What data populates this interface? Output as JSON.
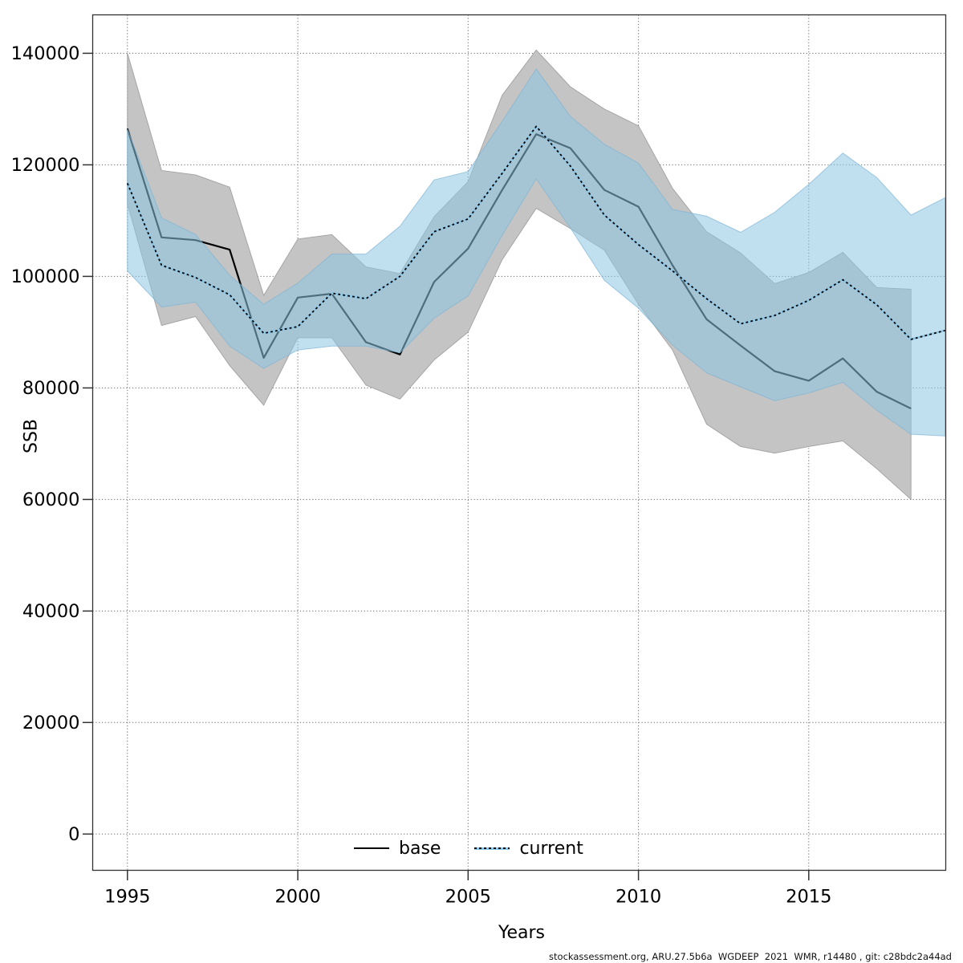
{
  "figure": {
    "background": "#ffffff",
    "y_axis_title": "SSB",
    "x_axis_title": "Years",
    "footer": "stockassessment.org, ARU.27.5b6a  WGDEEP  2021  WMR, r14480 , git: c28bdc2a44ad",
    "legend": {
      "items": [
        {
          "label": "base",
          "style": "solid-black-line"
        },
        {
          "label": "current",
          "style": "dotted-blue-line"
        }
      ]
    },
    "colors": {
      "base_line": "#000000",
      "base_band_fill": "#c4c4c4",
      "base_band_edge": "#a0a0a0",
      "current_line_dash": "#000000",
      "current_line_under": "#8ec6e6",
      "current_band_fill": "rgba(142,198,226,0.55)",
      "current_band_edge": "rgba(125,180,212,0.7)",
      "grid": "#666666",
      "axis": "#333333"
    }
  },
  "chart_data": {
    "type": "line",
    "title": "",
    "xlabel": "Years",
    "ylabel": "SSB",
    "xlim": [
      1993.98,
      2019.02
    ],
    "ylim": [
      -6500,
      146900
    ],
    "grid": true,
    "legend_position": "bottom-center-inside",
    "x_ticks": [
      1995,
      2000,
      2005,
      2010,
      2015
    ],
    "y_ticks": [
      0,
      20000,
      40000,
      60000,
      80000,
      100000,
      120000,
      140000
    ],
    "series": [
      {
        "name": "base",
        "line_style": "solid",
        "years": [
          1995,
          1996,
          1997,
          1998,
          1999,
          2000,
          2001,
          2002,
          2003,
          2004,
          2005,
          2006,
          2007,
          2008,
          2009,
          2010,
          2011,
          2012,
          2013,
          2014,
          2015,
          2016,
          2017,
          2018
        ],
        "values": [
          126500,
          107000,
          106500,
          104800,
          85400,
          96200,
          96900,
          88200,
          86000,
          99000,
          105000,
          115500,
          125500,
          123000,
          115500,
          112500,
          102000,
          92300,
          87600,
          83000,
          81300,
          85300,
          79300,
          76300
        ],
        "band_upper": [
          140000,
          119000,
          118200,
          116000,
          96600,
          106700,
          107500,
          101700,
          100500,
          110700,
          117000,
          132500,
          140600,
          134000,
          130000,
          127000,
          115800,
          108000,
          104200,
          98700,
          100700,
          104300,
          98000,
          97700
        ],
        "band_lower": [
          113000,
          91200,
          92800,
          84000,
          76900,
          89000,
          89000,
          80500,
          78000,
          85000,
          90000,
          103000,
          112200,
          108600,
          104700,
          95000,
          86800,
          73500,
          69500,
          68300,
          69500,
          70500,
          65500,
          60000
        ]
      },
      {
        "name": "current",
        "line_style": "dotted",
        "years": [
          1995,
          1996,
          1997,
          1998,
          1999,
          2000,
          2001,
          2002,
          2003,
          2004,
          2005,
          2006,
          2007,
          2008,
          2009,
          2010,
          2011,
          2012,
          2013,
          2014,
          2015,
          2016,
          2017,
          2018,
          2019
        ],
        "values": [
          116700,
          102000,
          99800,
          96700,
          89800,
          91000,
          97000,
          96000,
          100000,
          108000,
          110300,
          118500,
          126900,
          119800,
          111000,
          105700,
          101000,
          96000,
          91500,
          93000,
          95700,
          99400,
          94900,
          88700,
          90300
        ],
        "band_upper": [
          126400,
          110500,
          107500,
          100200,
          95000,
          98800,
          104000,
          104000,
          109000,
          117300,
          118800,
          127800,
          137200,
          128700,
          123700,
          120300,
          112000,
          110800,
          107900,
          111500,
          116500,
          122100,
          117700,
          111000,
          114100
        ],
        "band_lower": [
          101000,
          94500,
          95400,
          87500,
          83500,
          86800,
          87500,
          87500,
          86300,
          92500,
          96500,
          107400,
          117500,
          108700,
          99300,
          94300,
          87700,
          82700,
          80200,
          77700,
          79100,
          81000,
          76000,
          71700,
          71400
        ]
      }
    ]
  }
}
